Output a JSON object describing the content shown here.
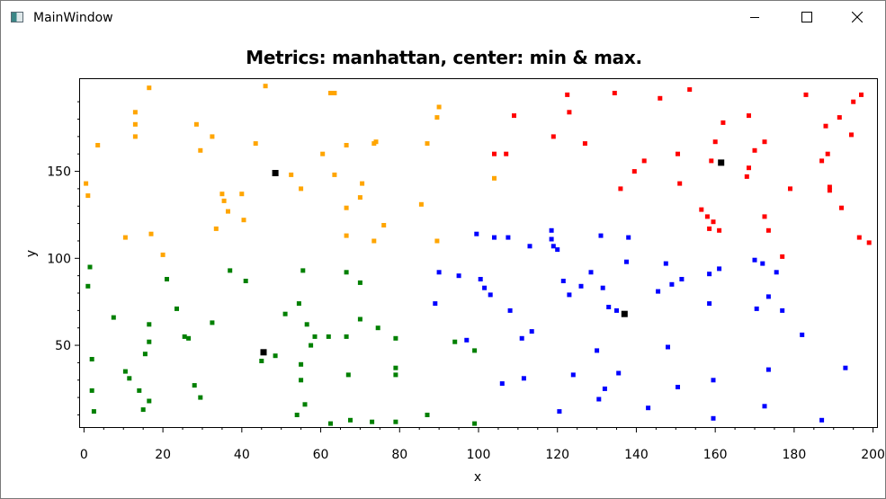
{
  "window": {
    "title": "MainWindow",
    "controls": {
      "minimize": "minimize-icon",
      "maximize": "maximize-icon",
      "close": "close-icon"
    }
  },
  "chart_data": {
    "type": "scatter",
    "title": "Metrics: manhattan, center: min & max.",
    "xlabel": "x",
    "ylabel": "y",
    "xlim": [
      -1,
      201
    ],
    "ylim": [
      3,
      203
    ],
    "xticks": [
      0,
      20,
      40,
      60,
      80,
      100,
      120,
      140,
      160,
      180,
      200
    ],
    "yticks": [
      50,
      100,
      150
    ],
    "grid": false,
    "legend": "none",
    "series": [
      {
        "color": "#ffa500",
        "points": [
          [
            0.5,
            143
          ],
          [
            1,
            136
          ],
          [
            3.5,
            165
          ],
          [
            10.5,
            112
          ],
          [
            13,
            184
          ],
          [
            13,
            177
          ],
          [
            13,
            170
          ],
          [
            16.5,
            198
          ],
          [
            17,
            114
          ],
          [
            20,
            102
          ],
          [
            28.5,
            177
          ],
          [
            29.5,
            162
          ],
          [
            32.5,
            170
          ],
          [
            33.5,
            117
          ],
          [
            35,
            137
          ],
          [
            35.5,
            133
          ],
          [
            36.5,
            127
          ],
          [
            40,
            137
          ],
          [
            40.5,
            122
          ],
          [
            43.5,
            166
          ],
          [
            46,
            199
          ],
          [
            52.5,
            148
          ],
          [
            55,
            140
          ],
          [
            60.5,
            160
          ],
          [
            62.5,
            195
          ],
          [
            63.5,
            195
          ],
          [
            63.5,
            148
          ],
          [
            66.5,
            165
          ],
          [
            66.5,
            129
          ],
          [
            66.5,
            113
          ],
          [
            70,
            135
          ],
          [
            70.5,
            143
          ],
          [
            73.5,
            110
          ],
          [
            73.5,
            166
          ],
          [
            74,
            167
          ],
          [
            76,
            119
          ],
          [
            85.5,
            131
          ],
          [
            87,
            166
          ],
          [
            89.5,
            110
          ],
          [
            89.5,
            181
          ],
          [
            90,
            187
          ],
          [
            104,
            146
          ]
        ]
      },
      {
        "color": "#008000",
        "points": [
          [
            1,
            84
          ],
          [
            1.5,
            95
          ],
          [
            2,
            42
          ],
          [
            2,
            24
          ],
          [
            2.5,
            12
          ],
          [
            7.5,
            66
          ],
          [
            10.5,
            35
          ],
          [
            11.5,
            31
          ],
          [
            14,
            24
          ],
          [
            15,
            13
          ],
          [
            15.5,
            45
          ],
          [
            16.5,
            52
          ],
          [
            16.5,
            62
          ],
          [
            16.5,
            18
          ],
          [
            21,
            88
          ],
          [
            23.5,
            71
          ],
          [
            25.5,
            55
          ],
          [
            26.5,
            54
          ],
          [
            28,
            27
          ],
          [
            29.5,
            20
          ],
          [
            32.5,
            63
          ],
          [
            37,
            93
          ],
          [
            41,
            87
          ],
          [
            45,
            41
          ],
          [
            48.5,
            44
          ],
          [
            51,
            68
          ],
          [
            54,
            10
          ],
          [
            54.5,
            74
          ],
          [
            55,
            30
          ],
          [
            55,
            39
          ],
          [
            55.5,
            93
          ],
          [
            56,
            16
          ],
          [
            56.5,
            62
          ],
          [
            57.5,
            50
          ],
          [
            58.5,
            55
          ],
          [
            62,
            55
          ],
          [
            62.5,
            5
          ],
          [
            66.5,
            55
          ],
          [
            66.5,
            92
          ],
          [
            67,
            33
          ],
          [
            67.5,
            7
          ],
          [
            70,
            65
          ],
          [
            70,
            86
          ],
          [
            73,
            6
          ],
          [
            74.5,
            60
          ],
          [
            79,
            54
          ],
          [
            79,
            37
          ],
          [
            79,
            33
          ],
          [
            79,
            6
          ],
          [
            87,
            10
          ],
          [
            94,
            52
          ],
          [
            99,
            47
          ],
          [
            99,
            5
          ]
        ]
      },
      {
        "color": "#0000ff",
        "points": [
          [
            89,
            74
          ],
          [
            90,
            92
          ],
          [
            95,
            90
          ],
          [
            97,
            53
          ],
          [
            99.5,
            114
          ],
          [
            100.5,
            88
          ],
          [
            101.5,
            83
          ],
          [
            103,
            79
          ],
          [
            104,
            112
          ],
          [
            106,
            28
          ],
          [
            107.5,
            112
          ],
          [
            108,
            70
          ],
          [
            111,
            54
          ],
          [
            111.5,
            31
          ],
          [
            113,
            107
          ],
          [
            113.5,
            58
          ],
          [
            118.5,
            116
          ],
          [
            118.5,
            111
          ],
          [
            119,
            107
          ],
          [
            120,
            105
          ],
          [
            120.5,
            12
          ],
          [
            121.5,
            87
          ],
          [
            123,
            79
          ],
          [
            124,
            33
          ],
          [
            126,
            84
          ],
          [
            128.5,
            92
          ],
          [
            130,
            47
          ],
          [
            130.5,
            19
          ],
          [
            131,
            113
          ],
          [
            131.5,
            83
          ],
          [
            132,
            25
          ],
          [
            133,
            72
          ],
          [
            135,
            70
          ],
          [
            135.5,
            34
          ],
          [
            137.5,
            98
          ],
          [
            138,
            112
          ],
          [
            143,
            14
          ],
          [
            145.5,
            81
          ],
          [
            147.5,
            97
          ],
          [
            148,
            49
          ],
          [
            149,
            85
          ],
          [
            150.5,
            26
          ],
          [
            151.5,
            88
          ],
          [
            158.5,
            91
          ],
          [
            158.5,
            74
          ],
          [
            159.5,
            30
          ],
          [
            159.5,
            8
          ],
          [
            161,
            94
          ],
          [
            170,
            99
          ],
          [
            170.5,
            71
          ],
          [
            172,
            97
          ],
          [
            172.5,
            15
          ],
          [
            173.5,
            36
          ],
          [
            173.5,
            78
          ],
          [
            175.5,
            92
          ],
          [
            177,
            70
          ],
          [
            182,
            56
          ],
          [
            187,
            7
          ],
          [
            193,
            37
          ]
        ]
      },
      {
        "color": "#ff0000",
        "points": [
          [
            104,
            160
          ],
          [
            107,
            160
          ],
          [
            109,
            182
          ],
          [
            119,
            170
          ],
          [
            122.5,
            194
          ],
          [
            123,
            184
          ],
          [
            127,
            166
          ],
          [
            134.5,
            195
          ],
          [
            136,
            140
          ],
          [
            139.5,
            150
          ],
          [
            142,
            156
          ],
          [
            146,
            192
          ],
          [
            150.5,
            160
          ],
          [
            151,
            143
          ],
          [
            153.5,
            197
          ],
          [
            156.5,
            128
          ],
          [
            158,
            124
          ],
          [
            158.5,
            117
          ],
          [
            159,
            156
          ],
          [
            159.5,
            121
          ],
          [
            160,
            167
          ],
          [
            161,
            116
          ],
          [
            162,
            178
          ],
          [
            168,
            147
          ],
          [
            168.5,
            182
          ],
          [
            168.5,
            152
          ],
          [
            170,
            162
          ],
          [
            172.5,
            167
          ],
          [
            172.5,
            124
          ],
          [
            173.5,
            116
          ],
          [
            177,
            101
          ],
          [
            179,
            140
          ],
          [
            183,
            194
          ],
          [
            187,
            156
          ],
          [
            188,
            176
          ],
          [
            188.5,
            160
          ],
          [
            189,
            141
          ],
          [
            189,
            139
          ],
          [
            191.5,
            181
          ],
          [
            192,
            129
          ],
          [
            194.5,
            171
          ],
          [
            195,
            190
          ],
          [
            196.5,
            112
          ],
          [
            197,
            194
          ],
          [
            199,
            109
          ]
        ]
      },
      {
        "color": "#000000",
        "points": [
          [
            48.5,
            149
          ],
          [
            45.5,
            46
          ],
          [
            137,
            68
          ],
          [
            161.5,
            155
          ]
        ]
      }
    ]
  }
}
